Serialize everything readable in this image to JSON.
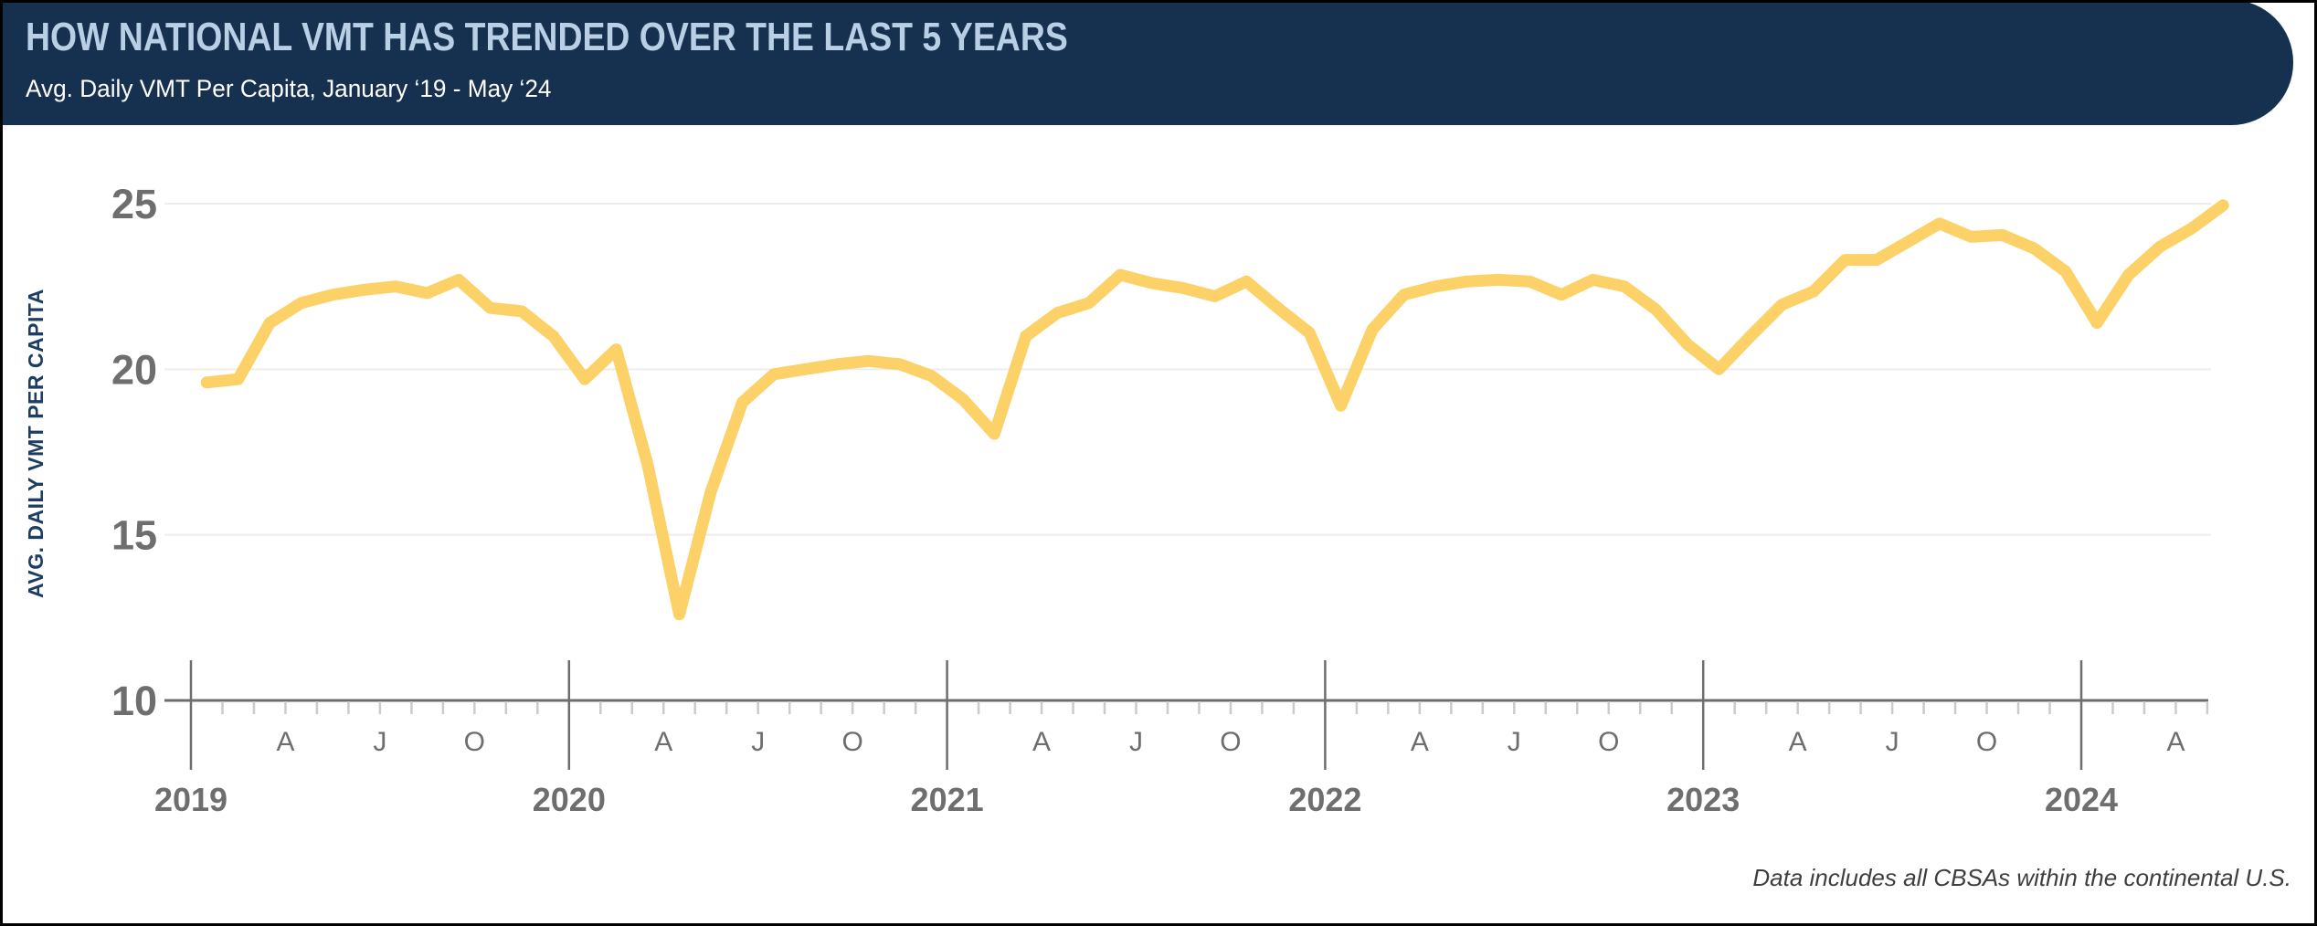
{
  "header": {
    "title": "HOW NATIONAL VMT HAS TRENDED OVER THE LAST 5 YEARS",
    "subtitle": "Avg. Daily VMT Per Capita, January ‘19 - May ‘24",
    "bg_color": "#16304F",
    "title_color": "#B9CFE6",
    "subtitle_color": "#FFFFFF"
  },
  "footnote": "Data includes all CBSAs within the continental U.S.",
  "chart_data": {
    "type": "line",
    "title": "HOW NATIONAL VMT HAS TRENDED OVER THE LAST 5 YEARS",
    "subtitle": "Avg. Daily VMT Per Capita, January ‘19 - May ‘24",
    "ylabel": "AVG. DAILY VMT PER CAPITA",
    "xlabel": "",
    "ylim": [
      10,
      25.5
    ],
    "y_ticks": [
      25,
      20,
      15,
      10
    ],
    "grid": "horizontal-light",
    "legend": "none",
    "line_color": "#FBD168",
    "axis_color": "#6E6E6E",
    "gridline_color": "#EDEDED",
    "month_tick_color": "#CBCBCB",
    "years": [
      "2019",
      "2020",
      "2021",
      "2022",
      "2023",
      "2024"
    ],
    "month_letters": [
      "A",
      "J",
      "O"
    ],
    "x_start": "2019-01",
    "x_end": "2024-05",
    "months": [
      "2019-01",
      "2019-02",
      "2019-03",
      "2019-04",
      "2019-05",
      "2019-06",
      "2019-07",
      "2019-08",
      "2019-09",
      "2019-10",
      "2019-11",
      "2019-12",
      "2020-01",
      "2020-02",
      "2020-03",
      "2020-04",
      "2020-05",
      "2020-06",
      "2020-07",
      "2020-08",
      "2020-09",
      "2020-10",
      "2020-11",
      "2020-12",
      "2021-01",
      "2021-02",
      "2021-03",
      "2021-04",
      "2021-05",
      "2021-06",
      "2021-07",
      "2021-08",
      "2021-09",
      "2021-10",
      "2021-11",
      "2021-12",
      "2022-01",
      "2022-02",
      "2022-03",
      "2022-04",
      "2022-05",
      "2022-06",
      "2022-07",
      "2022-08",
      "2022-09",
      "2022-10",
      "2022-11",
      "2022-12",
      "2023-01",
      "2023-02",
      "2023-03",
      "2023-04",
      "2023-05",
      "2023-06",
      "2023-07",
      "2023-08",
      "2023-09",
      "2023-10",
      "2023-11",
      "2023-12",
      "2024-01",
      "2024-02",
      "2024-03",
      "2024-04",
      "2024-05"
    ],
    "series": [
      {
        "name": "Avg. Daily VMT Per Capita",
        "color": "#FBD168",
        "values": [
          19.6,
          19.7,
          21.4,
          22.0,
          22.25,
          22.4,
          22.5,
          22.3,
          22.7,
          21.85,
          21.75,
          21.0,
          19.7,
          20.6,
          17.1,
          12.6,
          16.3,
          19.0,
          19.85,
          20.0,
          20.15,
          20.25,
          20.15,
          19.8,
          19.1,
          18.05,
          21.0,
          21.7,
          22.0,
          22.85,
          22.6,
          22.45,
          22.2,
          22.65,
          21.85,
          21.1,
          18.9,
          21.2,
          22.25,
          22.5,
          22.65,
          22.7,
          22.65,
          22.25,
          22.7,
          22.5,
          21.8,
          20.75,
          20.0,
          21.0,
          21.95,
          22.35,
          23.3,
          23.3,
          23.85,
          24.4,
          24.0,
          24.05,
          23.65,
          22.95,
          21.4,
          22.85,
          23.7,
          24.25,
          24.95
        ]
      }
    ]
  }
}
